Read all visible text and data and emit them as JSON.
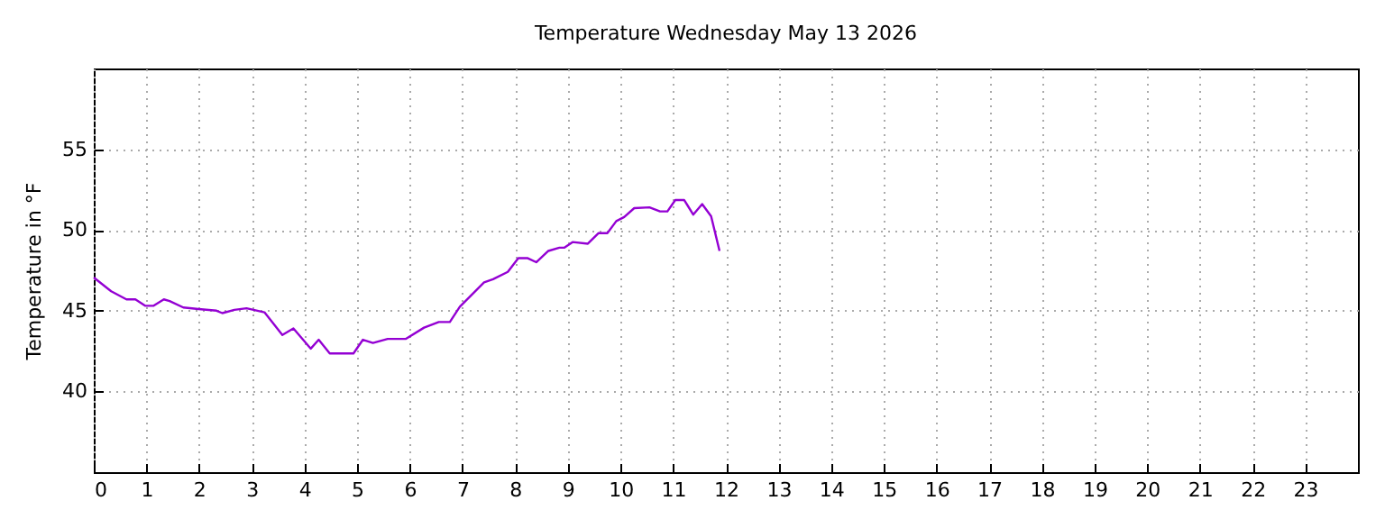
{
  "chart_data": {
    "type": "line",
    "title": "Temperature Wednesday May 13 2026",
    "ylabel": "Temperature in °F",
    "x": [
      0,
      0.33,
      0.62,
      0.79,
      0.98,
      1.13,
      1.33,
      1.44,
      1.7,
      1.99,
      2.33,
      2.44,
      2.67,
      2.9,
      3.24,
      3.58,
      3.79,
      4.12,
      4.27,
      4.48,
      4.93,
      5.11,
      5.3,
      5.58,
      5.92,
      6.27,
      6.55,
      6.76,
      6.95,
      7.18,
      7.41,
      7.58,
      7.86,
      8.06,
      8.24,
      8.4,
      8.63,
      8.84,
      8.93,
      9.09,
      9.38,
      9.58,
      9.75,
      9.92,
      10.07,
      10.26,
      10.55,
      10.75,
      10.89,
      11.04,
      11.21,
      11.38,
      11.55,
      11.72,
      11.88
    ],
    "series": [
      {
        "color": "#9400d3",
        "values": [
          47.05,
          46.2,
          45.7,
          45.7,
          45.3,
          45.3,
          45.7,
          45.6,
          45.2,
          45.1,
          45.0,
          44.85,
          45.05,
          45.15,
          44.9,
          43.5,
          43.9,
          42.65,
          43.2,
          42.35,
          42.35,
          43.2,
          43.0,
          43.25,
          43.25,
          43.95,
          44.3,
          44.3,
          45.25,
          46.0,
          46.75,
          46.95,
          47.4,
          48.25,
          48.25,
          48.0,
          48.7,
          48.9,
          48.9,
          49.25,
          49.15,
          49.8,
          49.8,
          50.55,
          50.8,
          51.35,
          51.4,
          51.15,
          51.15,
          51.85,
          51.85,
          50.95,
          51.6,
          50.85,
          48.7
        ]
      }
    ],
    "xlim": [
      0,
      24
    ],
    "xticks": [
      0,
      1,
      2,
      3,
      4,
      5,
      6,
      7,
      8,
      9,
      10,
      11,
      12,
      13,
      14,
      15,
      16,
      17,
      18,
      19,
      20,
      21,
      22,
      23
    ],
    "ylim": [
      35,
      60
    ],
    "yticks": [
      40,
      45,
      50,
      55
    ],
    "grid": true,
    "legend": false,
    "marker": "none",
    "line_style": "solid"
  }
}
